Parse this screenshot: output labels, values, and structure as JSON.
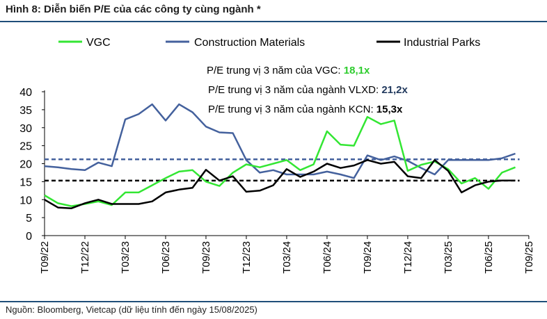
{
  "header": {
    "title": "Hình 8: Diễn biến P/E của các công ty cùng ngành *"
  },
  "footer": {
    "source": "Nguồn: Bloomberg, Vietcap (dữ liệu tính đến ngày 15/08/2025)"
  },
  "chart_data": {
    "type": "line",
    "title": "Hình 8: Diễn biến P/E của các công ty cùng ngành *",
    "xlabel": "",
    "ylabel": "",
    "ylim": [
      0,
      40
    ],
    "yticks": [
      0,
      5,
      10,
      15,
      20,
      25,
      30,
      35,
      40
    ],
    "grid": false,
    "legend_position": "top",
    "tick_labels": [
      "T09/22",
      "T12/22",
      "T03/23",
      "T06/23",
      "T09/23",
      "T12/23",
      "T03/24",
      "T06/24",
      "T09/24",
      "T12/24",
      "T03/25",
      "T06/25",
      "T09/25"
    ],
    "x": [
      "T09/22",
      "T10/22",
      "T11/22",
      "T12/22",
      "T01/23",
      "T02/23",
      "T03/23",
      "T04/23",
      "T05/23",
      "T06/23",
      "T07/23",
      "T08/23",
      "T09/23",
      "T10/23",
      "T11/23",
      "T12/23",
      "T01/24",
      "T02/24",
      "T03/24",
      "T04/24",
      "T05/24",
      "T06/24",
      "T07/24",
      "T08/24",
      "T09/24",
      "T10/24",
      "T11/24",
      "T12/24",
      "T01/25",
      "T02/25",
      "T03/25",
      "T04/25",
      "T05/25",
      "T06/25",
      "T07/25",
      "T08/25"
    ],
    "series": [
      {
        "name": "VGC",
        "color": "#33e633",
        "values": [
          11.2,
          9.0,
          8.2,
          8.8,
          9.5,
          8.5,
          12.0,
          12.0,
          14.0,
          16.0,
          17.8,
          18.2,
          15.0,
          13.8,
          17.5,
          19.8,
          19.0,
          20.0,
          21.0,
          18.2,
          19.8,
          29.0,
          25.3,
          25.0,
          33.0,
          31.0,
          32.0,
          18.0,
          19.7,
          20.6,
          18.5,
          14.5,
          16.0,
          13.0,
          17.5,
          19.0
        ]
      },
      {
        "name": "Construction Materials",
        "color": "#44619d",
        "values": [
          19.3,
          19.0,
          18.5,
          18.2,
          20.3,
          19.3,
          32.3,
          33.8,
          36.5,
          32.0,
          36.5,
          34.3,
          30.3,
          28.7,
          28.5,
          21.0,
          17.5,
          18.2,
          17.0,
          17.0,
          17.0,
          17.8,
          17.0,
          16.0,
          22.3,
          21.0,
          22.0,
          20.8,
          18.8,
          17.0,
          21.0,
          21.0,
          21.0,
          21.0,
          21.5,
          22.8
        ]
      },
      {
        "name": "Industrial Parks",
        "color": "#000000",
        "values": [
          10.0,
          7.8,
          7.6,
          9.0,
          10.0,
          8.8,
          8.8,
          8.8,
          9.5,
          12.0,
          12.8,
          13.3,
          18.3,
          15.3,
          16.5,
          12.2,
          12.5,
          14.0,
          18.5,
          16.3,
          17.8,
          20.0,
          18.8,
          19.5,
          21.0,
          20.0,
          20.5,
          16.5,
          16.0,
          21.0,
          18.0,
          12.0,
          14.0,
          15.0,
          15.3,
          15.3
        ]
      }
    ],
    "reference_lines": [
      {
        "name": "Construction Materials median",
        "value": 21.2,
        "color": "#44619d",
        "style": "dashed"
      },
      {
        "name": "Industrial Parks median",
        "value": 15.3,
        "color": "#000000",
        "style": "dashed"
      }
    ],
    "annotations": [
      {
        "label": "P/E trung vị 3 năm của VGC: ",
        "value": "18,1x"
      },
      {
        "label": "P/E trung vị 3 năm của ngành VLXD: ",
        "value": "21,2x"
      },
      {
        "label": "P/E trung vị 3 năm của ngành KCN: ",
        "value": "15,3x"
      }
    ]
  }
}
